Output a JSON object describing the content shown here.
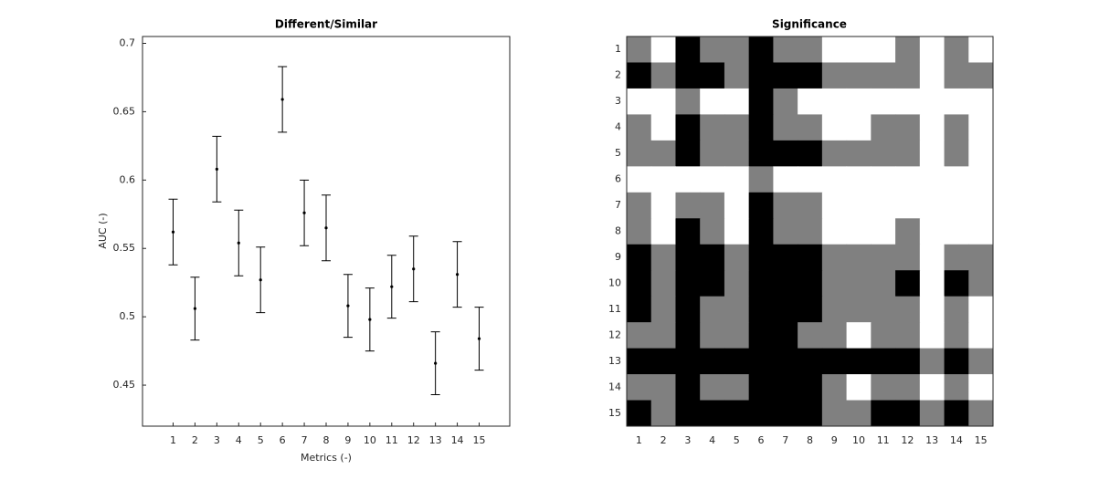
{
  "chart_data": [
    {
      "type": "errorbar",
      "title": "Different/Similar",
      "xlabel": "Metrics (-)",
      "ylabel": "AUC (-)",
      "x": [
        1,
        2,
        3,
        4,
        5,
        6,
        7,
        8,
        9,
        10,
        11,
        12,
        13,
        14,
        15
      ],
      "values": [
        0.562,
        0.506,
        0.608,
        0.554,
        0.527,
        0.659,
        0.576,
        0.565,
        0.508,
        0.498,
        0.522,
        0.535,
        0.466,
        0.531,
        0.484
      ],
      "errors": [
        0.024,
        0.023,
        0.024,
        0.024,
        0.024,
        0.024,
        0.024,
        0.024,
        0.023,
        0.023,
        0.023,
        0.024,
        0.023,
        0.024,
        0.023
      ],
      "color": "#000000",
      "xlim": [
        -0.4,
        16.4
      ],
      "xticks": [
        1,
        2,
        3,
        4,
        5,
        6,
        7,
        8,
        9,
        10,
        11,
        12,
        13,
        14,
        15
      ],
      "ylim": [
        0.42,
        0.705
      ],
      "yticks": [
        0.45,
        0.5,
        0.55,
        0.6,
        0.65,
        0.7
      ]
    },
    {
      "type": "heatmap",
      "title": "Significance",
      "x_categories": [
        1,
        2,
        3,
        4,
        5,
        6,
        7,
        8,
        9,
        10,
        11,
        12,
        13,
        14,
        15
      ],
      "y_categories": [
        1,
        2,
        3,
        4,
        5,
        6,
        7,
        8,
        9,
        10,
        11,
        12,
        13,
        14,
        15
      ],
      "colors": [
        "#ffffff",
        "#808080",
        "#000000"
      ],
      "values": [
        [
          1,
          0,
          2,
          1,
          1,
          2,
          1,
          1,
          0,
          0,
          0,
          1,
          0,
          1,
          0
        ],
        [
          2,
          1,
          2,
          2,
          1,
          2,
          2,
          2,
          1,
          1,
          1,
          1,
          0,
          1,
          1
        ],
        [
          0,
          0,
          1,
          0,
          0,
          2,
          1,
          0,
          0,
          0,
          0,
          0,
          0,
          0,
          0
        ],
        [
          1,
          0,
          2,
          1,
          1,
          2,
          1,
          1,
          0,
          0,
          1,
          1,
          0,
          1,
          0
        ],
        [
          1,
          1,
          2,
          1,
          1,
          2,
          2,
          2,
          1,
          1,
          1,
          1,
          0,
          1,
          0
        ],
        [
          0,
          0,
          0,
          0,
          0,
          1,
          0,
          0,
          0,
          0,
          0,
          0,
          0,
          0,
          0
        ],
        [
          1,
          0,
          1,
          1,
          0,
          2,
          1,
          1,
          0,
          0,
          0,
          0,
          0,
          0,
          0
        ],
        [
          1,
          0,
          2,
          1,
          0,
          2,
          1,
          1,
          0,
          0,
          0,
          1,
          0,
          0,
          0
        ],
        [
          2,
          1,
          2,
          2,
          1,
          2,
          2,
          2,
          1,
          1,
          1,
          1,
          0,
          1,
          1
        ],
        [
          2,
          1,
          2,
          2,
          1,
          2,
          2,
          2,
          1,
          1,
          1,
          2,
          0,
          2,
          1
        ],
        [
          2,
          1,
          2,
          1,
          1,
          2,
          2,
          2,
          1,
          1,
          1,
          1,
          0,
          1,
          0
        ],
        [
          1,
          1,
          2,
          1,
          1,
          2,
          2,
          1,
          1,
          0,
          1,
          1,
          0,
          1,
          0
        ],
        [
          2,
          2,
          2,
          2,
          2,
          2,
          2,
          2,
          2,
          2,
          2,
          2,
          1,
          2,
          1
        ],
        [
          1,
          1,
          2,
          1,
          1,
          2,
          2,
          2,
          1,
          0,
          1,
          1,
          0,
          1,
          0
        ],
        [
          2,
          1,
          2,
          2,
          2,
          2,
          2,
          2,
          1,
          1,
          2,
          2,
          1,
          2,
          1
        ]
      ]
    }
  ]
}
